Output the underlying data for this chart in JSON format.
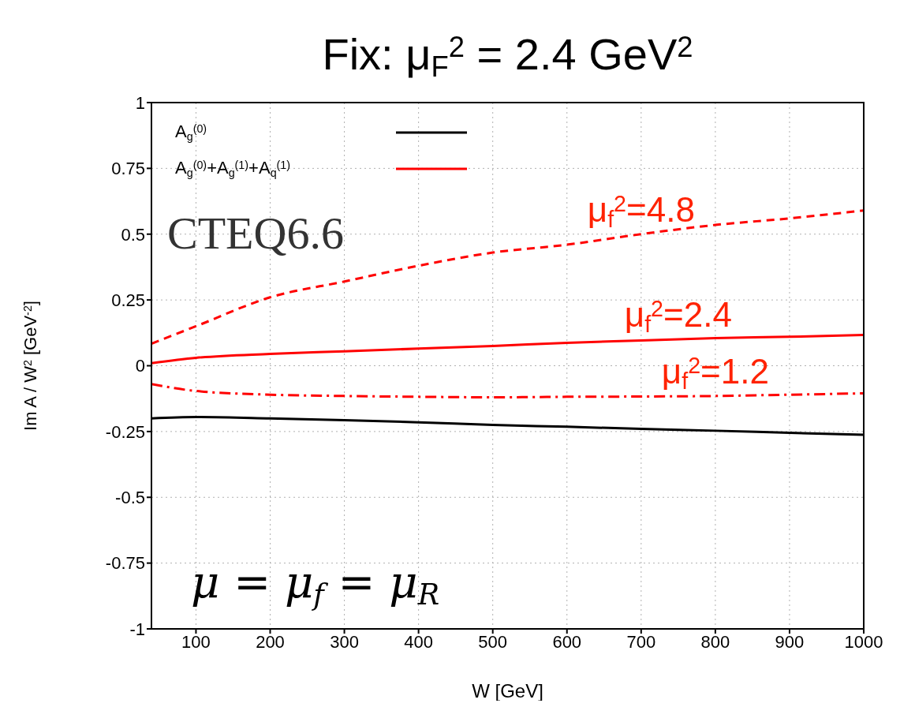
{
  "chart_data": {
    "type": "line",
    "title": "Fix: μ$_{F}$$^{2}$ = 2.4 GeV$^{2}$",
    "xlabel": "W [GeV]",
    "ylabel": "Im A / W$^{2}$ [GeV$^{-2}$]",
    "x": [
      40,
      100,
      200,
      300,
      400,
      500,
      600,
      700,
      800,
      900,
      1000
    ],
    "series": [
      {
        "name": "A$_{g}$$^{(0)}$",
        "color": "#000000",
        "line_style": "solid",
        "values": [
          -0.2,
          -0.195,
          -0.2,
          -0.207,
          -0.215,
          -0.225,
          -0.232,
          -0.24,
          -0.247,
          -0.255,
          -0.262
        ]
      },
      {
        "name": "A$_{g}$$^{(0)}$+A$_{g}$$^{(1)}$+A$_{q}$$^{(1)}$",
        "color": "#ff0000",
        "line_style": "solid",
        "values": [
          0.01,
          0.03,
          0.045,
          0.055,
          0.065,
          0.075,
          0.087,
          0.096,
          0.105,
          0.11,
          0.117
        ]
      },
      {
        "color": "#ff0000",
        "line_style": "dashed",
        "values": [
          0.084,
          0.15,
          0.26,
          0.32,
          0.38,
          0.43,
          0.46,
          0.5,
          0.535,
          0.56,
          0.59
        ]
      },
      {
        "color": "#ff0000",
        "line_style": "dashdot",
        "values": [
          -0.07,
          -0.096,
          -0.11,
          -0.115,
          -0.118,
          -0.12,
          -0.118,
          -0.117,
          -0.115,
          -0.11,
          -0.105
        ]
      }
    ],
    "xlim": [
      40,
      1000
    ],
    "xticks": [
      100,
      200,
      300,
      400,
      500,
      600,
      700,
      800,
      900,
      1000
    ],
    "ylim": [
      -1,
      1
    ],
    "yticks": [
      -1,
      -0.75,
      -0.5,
      -0.25,
      0,
      0.25,
      0.5,
      0.75,
      1
    ],
    "grid": true,
    "legend": "top left",
    "marker": "none",
    "annotations": [
      "CTEQ6.6",
      "μ = μ$_{f}$ = μ$_{R}$",
      {
        "text": "μ$_{f}$$^{2}$=4.8",
        "x": 700,
        "y": 0.5
      },
      {
        "text": "μ$_{f}$$^{2}$=2.4",
        "x": 750,
        "y": 0.1
      },
      {
        "text": "μ$_{f}$$^{2}$=1.2",
        "x": 800,
        "y": -0.115
      }
    ]
  }
}
